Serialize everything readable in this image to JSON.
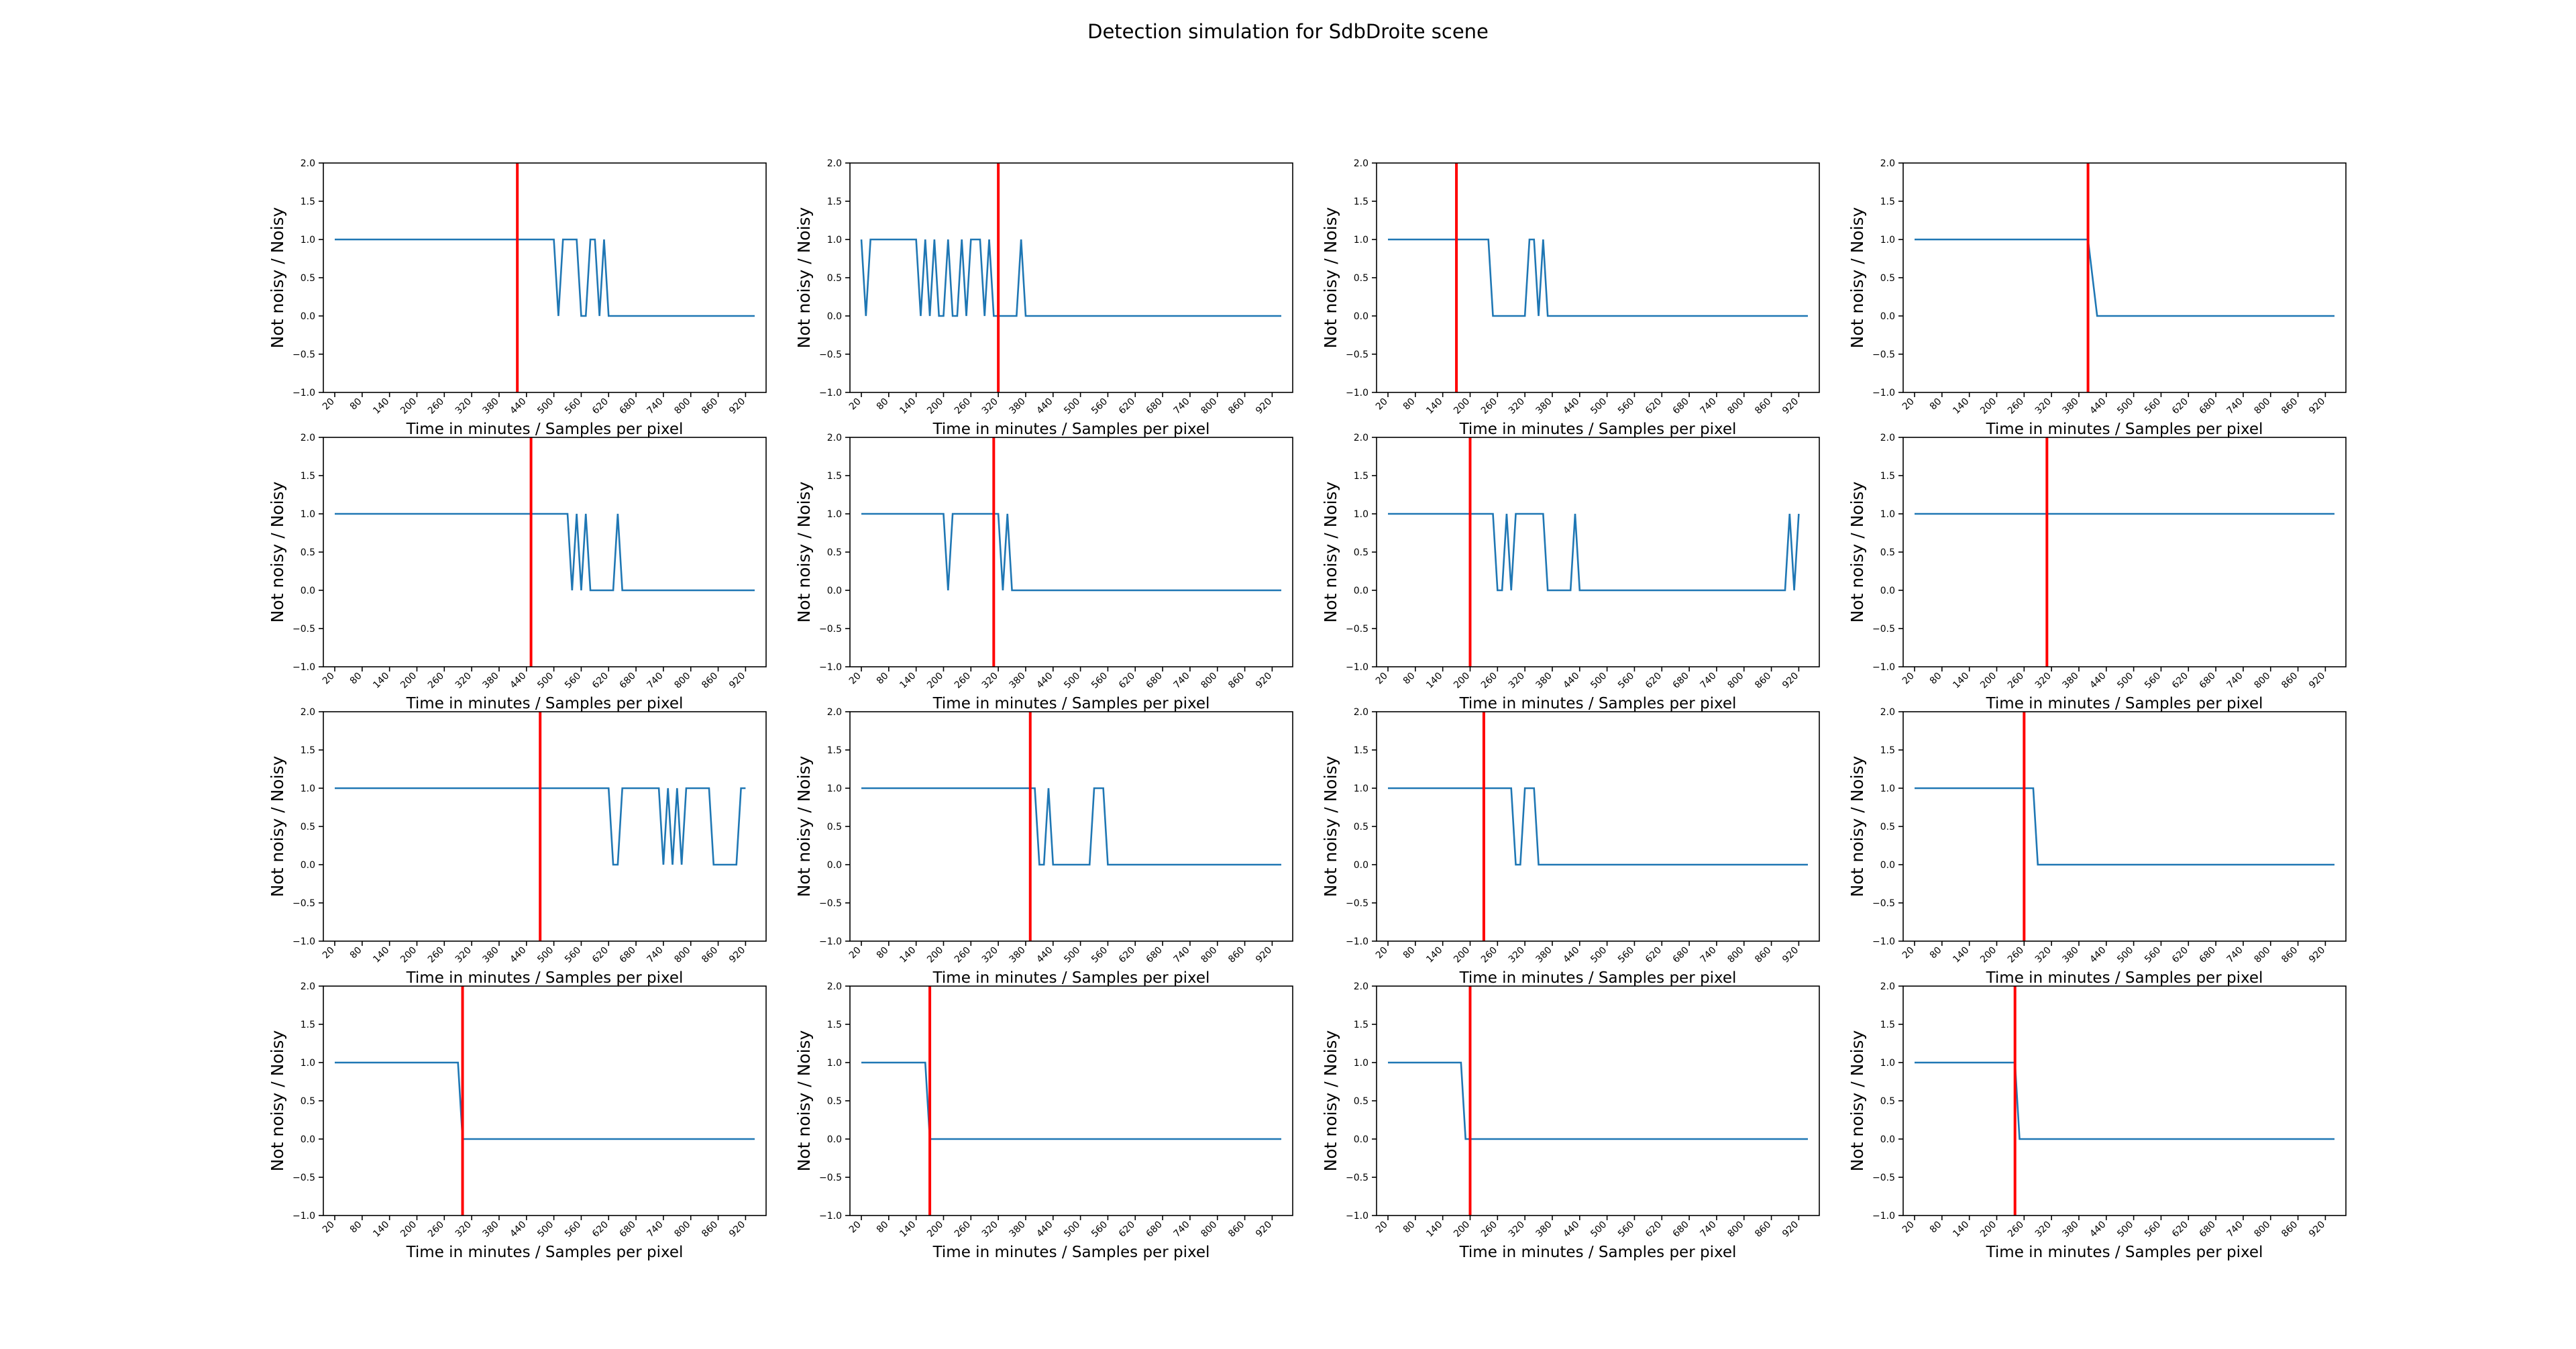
{
  "figure": {
    "title": "Detection simulation for SdbDroite scene"
  },
  "chart_data": {
    "type": "line",
    "title": "Detection simulation for SdbDroite scene",
    "shared": {
      "xlabel": "Time in minutes / Samples per pixel",
      "ylabel": "Not noisy / Noisy",
      "x_ticks": [
        20,
        80,
        140,
        200,
        260,
        320,
        380,
        440,
        500,
        560,
        620,
        680,
        740,
        800,
        860,
        920
      ],
      "y_ticks": [
        -1.0,
        -0.5,
        0.0,
        0.5,
        1.0,
        1.5,
        2.0
      ],
      "y_tick_labels": [
        "−1.0",
        "−0.5",
        "0.0",
        "0.5",
        "1.0",
        "1.5",
        "2.0"
      ],
      "xlim": [
        -5,
        965
      ],
      "ylim": [
        -1.0,
        2.0
      ],
      "series_color": "#1f77b4",
      "threshold_color": "#ff0000",
      "layout": "4x4 grid"
    },
    "subplots": [
      {
        "threshold_x": 420,
        "segments": [
          [
            20,
            1
          ],
          [
            500,
            1
          ],
          [
            510,
            0
          ],
          [
            520,
            1
          ],
          [
            550,
            1
          ],
          [
            560,
            0
          ],
          [
            570,
            0
          ],
          [
            580,
            1
          ],
          [
            590,
            1
          ],
          [
            600,
            0
          ],
          [
            610,
            1
          ],
          [
            620,
            0
          ],
          [
            940,
            0
          ]
        ]
      },
      {
        "threshold_x": 320,
        "segments": [
          [
            20,
            1
          ],
          [
            30,
            0
          ],
          [
            40,
            1
          ],
          [
            140,
            1
          ],
          [
            150,
            0
          ],
          [
            160,
            1
          ],
          [
            170,
            0
          ],
          [
            180,
            1
          ],
          [
            190,
            0
          ],
          [
            200,
            0
          ],
          [
            210,
            1
          ],
          [
            220,
            0
          ],
          [
            230,
            0
          ],
          [
            240,
            1
          ],
          [
            250,
            0
          ],
          [
            260,
            1
          ],
          [
            270,
            1
          ],
          [
            280,
            1
          ],
          [
            290,
            0
          ],
          [
            300,
            1
          ],
          [
            310,
            0
          ],
          [
            320,
            0
          ],
          [
            330,
            0
          ],
          [
            340,
            0
          ],
          [
            360,
            0
          ],
          [
            370,
            1
          ],
          [
            380,
            0
          ],
          [
            940,
            0
          ]
        ]
      },
      {
        "threshold_x": 170,
        "segments": [
          [
            20,
            1
          ],
          [
            240,
            1
          ],
          [
            250,
            0
          ],
          [
            320,
            0
          ],
          [
            330,
            1
          ],
          [
            340,
            1
          ],
          [
            350,
            0
          ],
          [
            360,
            1
          ],
          [
            370,
            0
          ],
          [
            940,
            0
          ]
        ]
      },
      {
        "threshold_x": 400,
        "segments": [
          [
            20,
            1
          ],
          [
            400,
            1
          ],
          [
            420,
            0
          ],
          [
            940,
            0
          ]
        ]
      },
      {
        "threshold_x": 450,
        "segments": [
          [
            20,
            1
          ],
          [
            530,
            1
          ],
          [
            540,
            0
          ],
          [
            550,
            1
          ],
          [
            560,
            0
          ],
          [
            570,
            1
          ],
          [
            580,
            0
          ],
          [
            630,
            0
          ],
          [
            640,
            1
          ],
          [
            650,
            0
          ],
          [
            940,
            0
          ]
        ]
      },
      {
        "threshold_x": 310,
        "segments": [
          [
            20,
            1
          ],
          [
            200,
            1
          ],
          [
            210,
            0
          ],
          [
            220,
            1
          ],
          [
            310,
            1
          ],
          [
            320,
            1
          ],
          [
            330,
            0
          ],
          [
            340,
            1
          ],
          [
            350,
            0
          ],
          [
            940,
            0
          ]
        ]
      },
      {
        "threshold_x": 200,
        "segments": [
          [
            20,
            1
          ],
          [
            250,
            1
          ],
          [
            260,
            0
          ],
          [
            270,
            0
          ],
          [
            280,
            1
          ],
          [
            290,
            0
          ],
          [
            300,
            1
          ],
          [
            360,
            1
          ],
          [
            370,
            0
          ],
          [
            420,
            0
          ],
          [
            430,
            1
          ],
          [
            440,
            0
          ],
          [
            890,
            0
          ],
          [
            900,
            1
          ],
          [
            910,
            0
          ],
          [
            920,
            1
          ]
        ]
      },
      {
        "threshold_x": 310,
        "segments": [
          [
            20,
            1
          ],
          [
            940,
            1
          ]
        ]
      },
      {
        "threshold_x": 470,
        "segments": [
          [
            20,
            1
          ],
          [
            620,
            1
          ],
          [
            630,
            0
          ],
          [
            640,
            0
          ],
          [
            650,
            1
          ],
          [
            730,
            1
          ],
          [
            740,
            0
          ],
          [
            750,
            1
          ],
          [
            760,
            0
          ],
          [
            770,
            1
          ],
          [
            780,
            0
          ],
          [
            790,
            1
          ],
          [
            840,
            1
          ],
          [
            850,
            0
          ],
          [
            900,
            0
          ],
          [
            910,
            1
          ],
          [
            920,
            1
          ]
        ]
      },
      {
        "threshold_x": 390,
        "segments": [
          [
            20,
            1
          ],
          [
            400,
            1
          ],
          [
            410,
            0
          ],
          [
            420,
            0
          ],
          [
            430,
            1
          ],
          [
            440,
            0
          ],
          [
            520,
            0
          ],
          [
            530,
            1
          ],
          [
            550,
            1
          ],
          [
            560,
            0
          ],
          [
            940,
            0
          ]
        ]
      },
      {
        "threshold_x": 230,
        "segments": [
          [
            20,
            1
          ],
          [
            290,
            1
          ],
          [
            300,
            0
          ],
          [
            310,
            0
          ],
          [
            320,
            1
          ],
          [
            340,
            1
          ],
          [
            350,
            0
          ],
          [
            940,
            0
          ]
        ]
      },
      {
        "threshold_x": 260,
        "segments": [
          [
            20,
            1
          ],
          [
            280,
            1
          ],
          [
            290,
            0
          ],
          [
            940,
            0
          ]
        ]
      },
      {
        "threshold_x": 300,
        "segments": [
          [
            20,
            1
          ],
          [
            290,
            1
          ],
          [
            300,
            0
          ],
          [
            940,
            0
          ]
        ]
      },
      {
        "threshold_x": 170,
        "segments": [
          [
            20,
            1
          ],
          [
            160,
            1
          ],
          [
            170,
            0
          ],
          [
            940,
            0
          ]
        ]
      },
      {
        "threshold_x": 200,
        "segments": [
          [
            20,
            1
          ],
          [
            180,
            1
          ],
          [
            190,
            0
          ],
          [
            940,
            0
          ]
        ]
      },
      {
        "threshold_x": 240,
        "segments": [
          [
            20,
            1
          ],
          [
            240,
            1
          ],
          [
            250,
            0
          ],
          [
            940,
            0
          ]
        ]
      }
    ]
  }
}
